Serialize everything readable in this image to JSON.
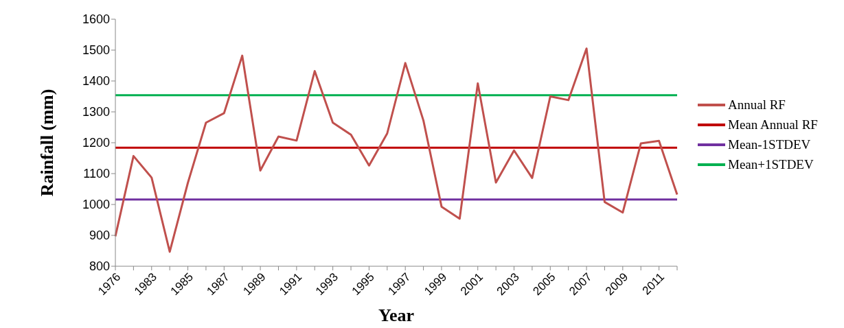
{
  "chart_data": {
    "type": "line",
    "xlabel": "Year",
    "ylabel": "Rainfall (mm)",
    "categories": [
      "1976",
      null,
      "1983",
      null,
      "1985",
      null,
      "1987",
      null,
      "1989",
      null,
      "1991",
      null,
      "1993",
      null,
      "1995",
      null,
      "1997",
      null,
      "1999",
      null,
      "2001",
      null,
      "2003",
      null,
      "2005",
      null,
      "2007",
      null,
      "2009",
      null,
      "2011",
      null
    ],
    "series": [
      {
        "name": "Annual RF",
        "color": "#c0504d",
        "values": [
          897,
          1157,
          1087,
          847,
          1070,
          1265,
          1296,
          1482,
          1110,
          1220,
          1207,
          1432,
          1265,
          1226,
          1126,
          1230,
          1458,
          1272,
          993,
          954,
          1392,
          1071,
          1175,
          1086,
          1350,
          1338,
          1505,
          1008,
          974,
          1198,
          1206,
          1032
        ]
      }
    ],
    "ref_lines": [
      {
        "axis": "y",
        "value": 1184,
        "label": "Mean Annual RF",
        "color": "#c00000"
      },
      {
        "axis": "y",
        "value": 1016,
        "label": "Mean-1STDEV",
        "color": "#7030a0"
      },
      {
        "axis": "y",
        "value": 1354,
        "label": "Mean+1STDEV",
        "color": "#00b050"
      }
    ],
    "ylim": [
      800,
      1600
    ],
    "yticks": [
      800,
      900,
      1000,
      1100,
      1200,
      1300,
      1400,
      1500,
      1600
    ],
    "grid": false,
    "legend": "right",
    "marker": "none",
    "line_style": "solid"
  }
}
